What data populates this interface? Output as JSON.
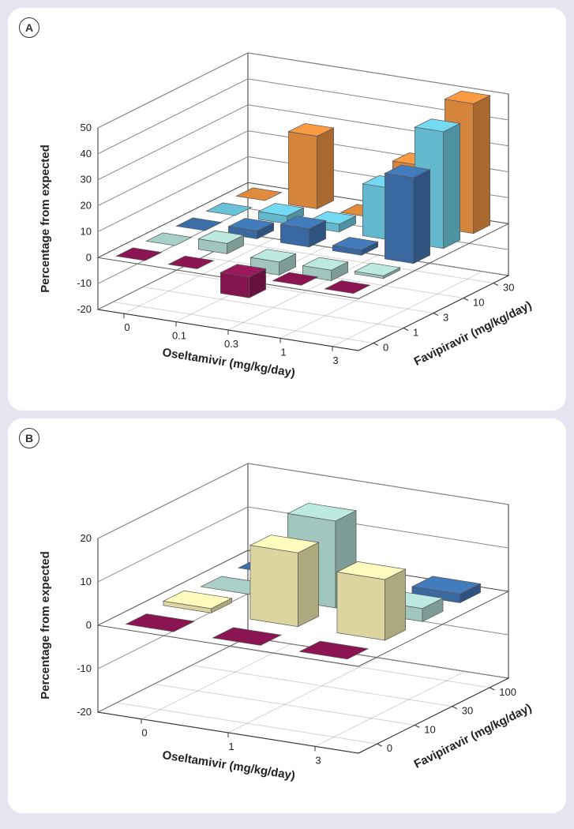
{
  "background_color": "#e8e3f0",
  "panel_bg": "#ffffff",
  "grid_color": "#888888",
  "box_color": "#333333",
  "panelA": {
    "label": "A",
    "z_axis": {
      "label": "Percentage from expected",
      "min": -20,
      "max": 50,
      "step": 10
    },
    "x_axis": {
      "label": "Oseltamivir (mg/kg/day)",
      "categories": [
        "0",
        "0.1",
        "0.3",
        "1",
        "3"
      ]
    },
    "y_axis": {
      "label": "Favipiravir (mg/kg/day)",
      "categories": [
        "0",
        "1",
        "3",
        "10",
        "30"
      ]
    },
    "series_colors": [
      "#8a1552",
      "#a8d0c8",
      "#3c6fa8",
      "#68c2d8",
      "#e08b3e"
    ],
    "data": [
      [
        0,
        0,
        0,
        0,
        0
      ],
      [
        0,
        4,
        3,
        3,
        28
      ],
      [
        -8,
        -5,
        7,
        3,
        0
      ],
      [
        0,
        -4,
        2,
        20,
        23
      ],
      [
        0,
        1,
        33,
        45,
        50
      ]
    ],
    "bar_depth": 0.55,
    "bar_width": 0.55
  },
  "panelB": {
    "label": "B",
    "z_axis": {
      "label": "Percentage from expected",
      "min": -20,
      "max": 20,
      "step": 10
    },
    "x_axis": {
      "label": "Oseltamivir (mg/kg/day)",
      "categories": [
        "0",
        "1",
        "3"
      ]
    },
    "y_axis": {
      "label": "Favipiravir (mg/kg/day)",
      "categories": [
        "0",
        "10",
        "30",
        "100"
      ]
    },
    "series_colors": [
      "#8a1552",
      "#e8e0a8",
      "#a8d0c8",
      "#3c6fa8"
    ],
    "data": [
      [
        0,
        1,
        0,
        0
      ],
      [
        0,
        17,
        20,
        2
      ],
      [
        0,
        14,
        3,
        2
      ]
    ],
    "bar_depth": 0.55,
    "bar_width": 0.55
  }
}
